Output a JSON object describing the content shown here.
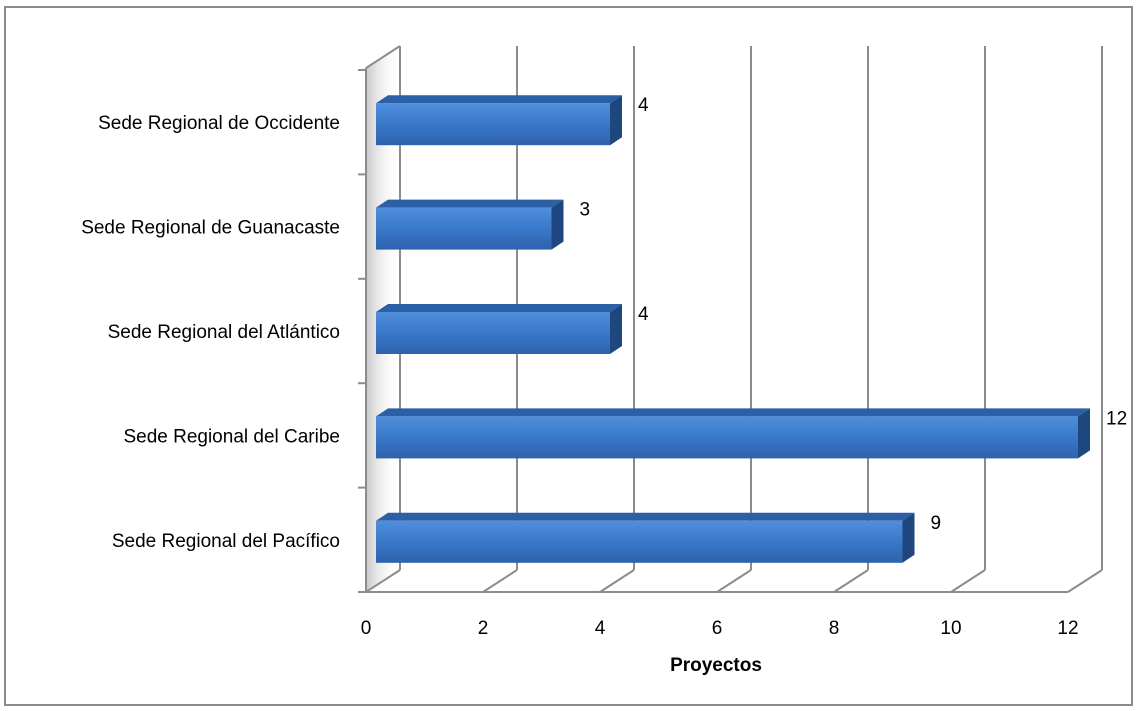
{
  "chart_data": {
    "type": "bar",
    "orientation": "horizontal",
    "style": "3d",
    "categories": [
      "Sede Regional de Occidente",
      "Sede Regional de Guanacaste",
      "Sede Regional del Atlántico",
      "Sede Regional del Caribe",
      "Sede Regional del Pacífico"
    ],
    "values": [
      4,
      3,
      4,
      12,
      9
    ],
    "data_labels": [
      "4",
      "3",
      "4",
      "12",
      "9"
    ],
    "xlabel": "Proyectos",
    "ylabel": "",
    "title": "",
    "xlim": [
      0,
      12
    ],
    "xticks": [
      0,
      2,
      4,
      6,
      8,
      10,
      12
    ],
    "xtick_labels": [
      "0",
      "2",
      "4",
      "6",
      "8",
      "10",
      "12"
    ],
    "grid": true,
    "legend": "none",
    "colors": {
      "bar_face": "#3a78c9",
      "bar_top": "#2b5fa6",
      "bar_side": "#1f477f",
      "grid": "#8c8c8c",
      "frame": "#8c8c8c"
    }
  }
}
